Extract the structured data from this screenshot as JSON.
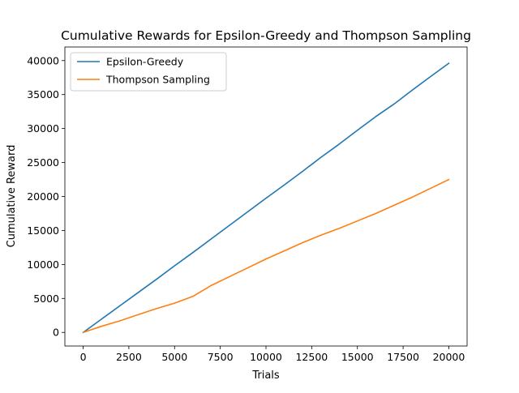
{
  "chart_data": {
    "type": "line",
    "title": "Cumulative Rewards for Epsilon-Greedy and Thompson Sampling",
    "xlabel": "Trials",
    "ylabel": "Cumulative Reward",
    "xlim": [
      -1000,
      21000
    ],
    "ylim": [
      -2000,
      42000
    ],
    "xticks": [
      0,
      2500,
      5000,
      7500,
      10000,
      12500,
      15000,
      17500,
      20000
    ],
    "xtick_labels": [
      "0",
      "2500",
      "5000",
      "7500",
      "10000",
      "12500",
      "15000",
      "17500",
      "20000"
    ],
    "yticks": [
      0,
      5000,
      10000,
      15000,
      20000,
      25000,
      30000,
      35000,
      40000
    ],
    "ytick_labels": [
      "0",
      "5000",
      "10000",
      "15000",
      "20000",
      "25000",
      "30000",
      "35000",
      "40000"
    ],
    "grid": false,
    "legend_position": "upper left",
    "series": [
      {
        "name": "Epsilon-Greedy",
        "color": "#1f77b4",
        "x": [
          0,
          1000,
          2000,
          3000,
          4000,
          5000,
          6000,
          7000,
          8000,
          9000,
          10000,
          11000,
          12000,
          13000,
          14000,
          15000,
          16000,
          17000,
          18000,
          19000,
          20000
        ],
        "y": [
          0,
          1950,
          3900,
          5850,
          7800,
          9800,
          11750,
          13750,
          15750,
          17750,
          19750,
          21700,
          23700,
          25750,
          27700,
          29750,
          31750,
          33600,
          35650,
          37650,
          39600
        ]
      },
      {
        "name": "Thompson Sampling",
        "color": "#ff7f0e",
        "x": [
          0,
          1000,
          2000,
          3000,
          4000,
          5000,
          5500,
          6000,
          6500,
          7000,
          8000,
          9000,
          10000,
          11000,
          12000,
          13000,
          14000,
          15000,
          16000,
          17000,
          18000,
          19000,
          20000
        ],
        "y": [
          0,
          900,
          1700,
          2600,
          3500,
          4300,
          4800,
          5300,
          6100,
          6900,
          8200,
          9500,
          10800,
          12000,
          13200,
          14300,
          15300,
          16400,
          17500,
          18700,
          19900,
          21200,
          22500
        ]
      }
    ]
  }
}
